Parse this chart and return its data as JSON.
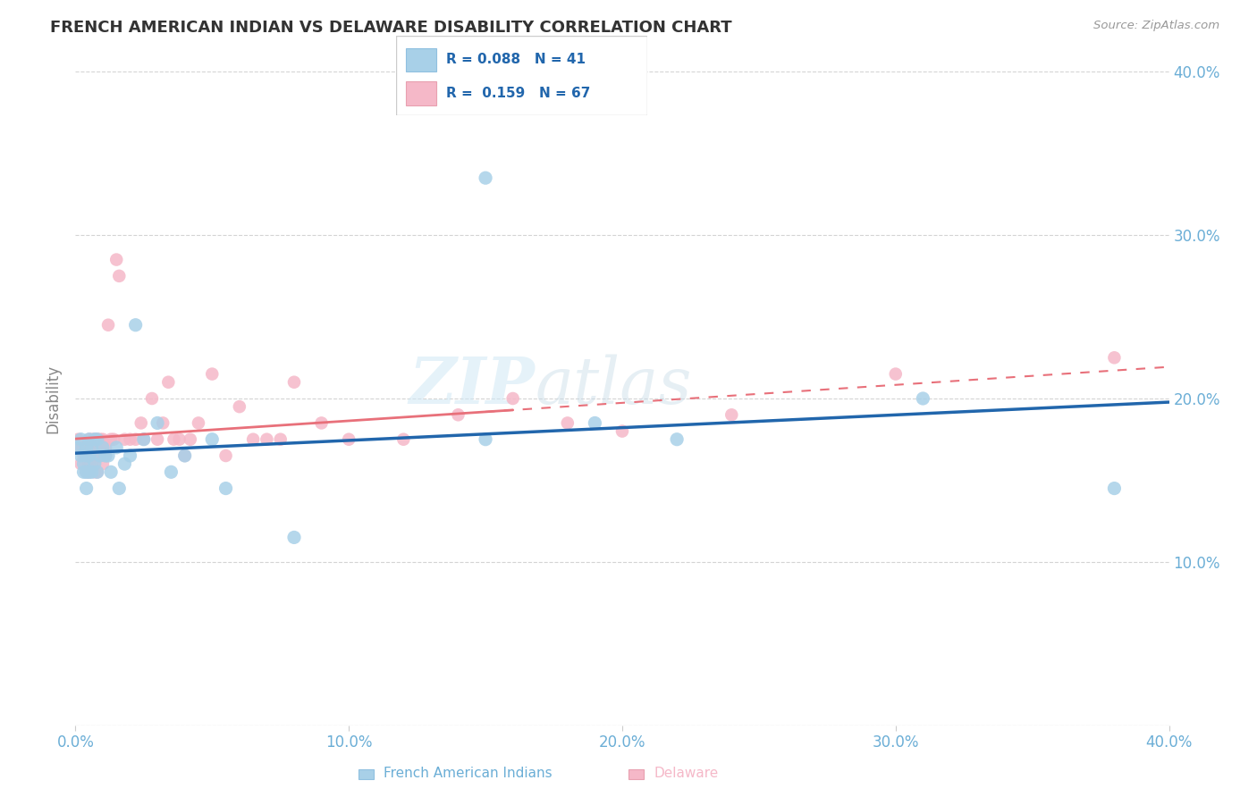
{
  "title": "FRENCH AMERICAN INDIAN VS DELAWARE DISABILITY CORRELATION CHART",
  "source": "Source: ZipAtlas.com",
  "ylabel": "Disability",
  "legend_blue_r": "R = 0.088",
  "legend_blue_n": "N = 41",
  "legend_pink_r": "R =  0.159",
  "legend_pink_n": "N = 67",
  "watermark_zip": "ZIP",
  "watermark_atlas": "atlas",
  "blue_color": "#a8d0e8",
  "pink_color": "#f5b8c8",
  "blue_line_color": "#2166ac",
  "pink_line_color": "#e8707a",
  "axis_color": "#6baed6",
  "grid_color": "#d0d0d0",
  "xlim": [
    0.0,
    0.4
  ],
  "ylim": [
    0.0,
    0.4
  ],
  "blue_x": [
    0.001,
    0.002,
    0.002,
    0.003,
    0.003,
    0.004,
    0.004,
    0.004,
    0.004,
    0.005,
    0.005,
    0.005,
    0.006,
    0.006,
    0.007,
    0.007,
    0.008,
    0.008,
    0.009,
    0.01,
    0.011,
    0.012,
    0.013,
    0.015,
    0.016,
    0.018,
    0.02,
    0.022,
    0.025,
    0.03,
    0.035,
    0.04,
    0.05,
    0.055,
    0.08,
    0.15,
    0.22,
    0.31,
    0.38,
    0.15,
    0.19
  ],
  "blue_y": [
    0.17,
    0.175,
    0.165,
    0.16,
    0.155,
    0.17,
    0.165,
    0.155,
    0.145,
    0.175,
    0.165,
    0.155,
    0.17,
    0.155,
    0.175,
    0.16,
    0.175,
    0.155,
    0.165,
    0.17,
    0.165,
    0.165,
    0.155,
    0.17,
    0.145,
    0.16,
    0.165,
    0.245,
    0.175,
    0.185,
    0.155,
    0.165,
    0.175,
    0.145,
    0.115,
    0.175,
    0.175,
    0.2,
    0.145,
    0.335,
    0.185
  ],
  "pink_x": [
    0.001,
    0.002,
    0.002,
    0.003,
    0.003,
    0.004,
    0.004,
    0.004,
    0.005,
    0.005,
    0.005,
    0.005,
    0.005,
    0.006,
    0.006,
    0.006,
    0.007,
    0.007,
    0.007,
    0.007,
    0.008,
    0.008,
    0.008,
    0.008,
    0.009,
    0.009,
    0.01,
    0.01,
    0.01,
    0.011,
    0.011,
    0.012,
    0.013,
    0.014,
    0.015,
    0.016,
    0.018,
    0.02,
    0.022,
    0.024,
    0.025,
    0.028,
    0.03,
    0.032,
    0.034,
    0.036,
    0.038,
    0.04,
    0.042,
    0.045,
    0.05,
    0.055,
    0.06,
    0.065,
    0.07,
    0.075,
    0.08,
    0.09,
    0.1,
    0.12,
    0.14,
    0.16,
    0.18,
    0.2,
    0.24,
    0.3,
    0.38
  ],
  "pink_y": [
    0.175,
    0.17,
    0.16,
    0.17,
    0.165,
    0.17,
    0.165,
    0.155,
    0.175,
    0.17,
    0.165,
    0.16,
    0.155,
    0.175,
    0.17,
    0.16,
    0.175,
    0.17,
    0.165,
    0.155,
    0.175,
    0.17,
    0.165,
    0.155,
    0.175,
    0.165,
    0.175,
    0.17,
    0.16,
    0.17,
    0.165,
    0.245,
    0.175,
    0.175,
    0.285,
    0.275,
    0.175,
    0.175,
    0.175,
    0.185,
    0.175,
    0.2,
    0.175,
    0.185,
    0.21,
    0.175,
    0.175,
    0.165,
    0.175,
    0.185,
    0.215,
    0.165,
    0.195,
    0.175,
    0.175,
    0.175,
    0.21,
    0.185,
    0.175,
    0.175,
    0.19,
    0.2,
    0.185,
    0.18,
    0.19,
    0.215,
    0.225
  ],
  "blue_scatter_size": 120,
  "pink_scatter_size": 110,
  "x_ticks": [
    0.0,
    0.1,
    0.2,
    0.3,
    0.4
  ],
  "y_ticks": [
    0.0,
    0.1,
    0.2,
    0.3,
    0.4
  ],
  "y_tick_labels": [
    "",
    "10.0%",
    "20.0%",
    "30.0%",
    "40.0%"
  ]
}
